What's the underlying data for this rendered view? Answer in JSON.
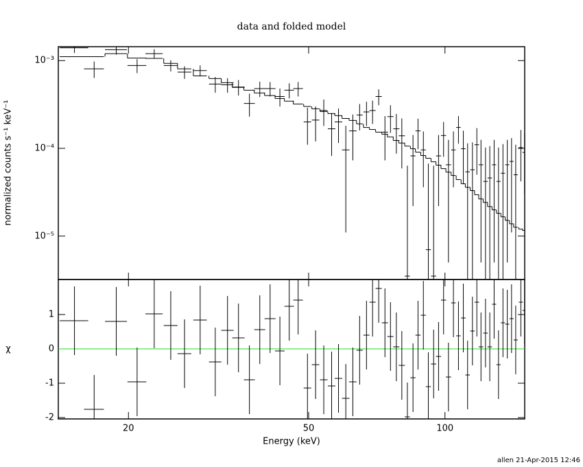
{
  "footer": "allen 21-Apr-2015 12:46",
  "chart_data": [
    {
      "type": "spectrum",
      "title": "data and folded model",
      "y_label": "normalized counts s⁻¹ keV⁻¹",
      "log_x": true,
      "log_y": true,
      "color": "#000000",
      "xlim": [
        14,
        150
      ],
      "ylim": [
        3.2e-06,
        0.00144
      ],
      "yticks": [
        {
          "value": 0.001,
          "label": "10⁻³"
        },
        {
          "value": 0.0001,
          "label": "10⁻⁴"
        },
        {
          "value": 1e-05,
          "label": "10⁻⁵"
        }
      ],
      "x": [
        15.2,
        16.8,
        18.8,
        20.9,
        22.8,
        24.8,
        26.6,
        28.8,
        31.1,
        33.1,
        35.0,
        37.0,
        39.0,
        41.1,
        43.2,
        45.3,
        47.4,
        49.7,
        51.8,
        54.0,
        56.2,
        58.2,
        60.4,
        62.6,
        64.8,
        67.1,
        69.2,
        71.4,
        73.7,
        75.8,
        78.1,
        80.3,
        82.6,
        85.0,
        87.2,
        89.6,
        91.9,
        94.4,
        96.8,
        99.3,
        101.8,
        104.4,
        107.1,
        109.8,
        112.2,
        115.0,
        117.6,
        120.1,
        122.9,
        125.6,
        128.4,
        131.3,
        134.3,
        137.3,
        140.3,
        143.3,
        147.1,
        149.9
      ],
      "xerr": [
        1.1,
        0.85,
        1.05,
        1.0,
        1.0,
        0.87,
        0.93,
        0.98,
        0.98,
        1.04,
        1.1,
        1.03,
        1.09,
        1.15,
        1.05,
        1.1,
        1.16,
        0.95,
        0.99,
        1.04,
        1.08,
        1.12,
        1.16,
        1.2,
        1.02,
        1.05,
        1.09,
        1.12,
        1.16,
        1.19,
        1.23,
        1.26,
        1.08,
        1.11,
        1.14,
        1.17,
        1.2,
        1.24,
        1.27,
        1.3,
        1.33,
        1.2,
        1.23,
        1.26,
        1.29,
        1.32,
        1.35,
        1.38,
        1.41,
        1.44,
        1.35,
        1.38,
        1.41,
        1.44,
        1.47,
        1.5,
        1.54,
        1.57
      ],
      "values": [
        0.0014,
        0.000805,
        0.00133,
        0.00088,
        0.0012,
        0.00088,
        0.00074,
        0.00077,
        0.00054,
        0.00053,
        0.0005,
        0.000325,
        0.00048,
        0.00048,
        0.00039,
        0.00046,
        0.00048,
        0.0002,
        0.00021,
        0.00027,
        0.000167,
        0.0002,
        9.6e-05,
        0.000158,
        0.00024,
        0.00026,
        0.00027,
        0.00039,
        0.000153,
        0.00023,
        0.000167,
        0.000139,
        3.5e-06,
        8.2e-05,
        0.000158,
        9.6e-05,
        7e-06,
        3.5e-06,
        8.2e-05,
        0.00014,
        6.5e-05,
        9.6e-05,
        0.000173,
        9.9e-05,
        5.4e-05,
        5.7e-05,
        0.00011,
        6.5e-05,
        4.2e-05,
        4.6e-05,
        6.5e-05,
        4.2e-05,
        5.2e-05,
        6.5e-05,
        7.1e-05,
        5e-05,
        0.000102,
        9e-05
      ],
      "errors": [
        0.00018,
        0.00017,
        0.00016,
        0.00016,
        0.00015,
        0.00013,
        0.00012,
        0.00011,
        0.00011,
        0.0001,
        0.0001,
        9.5e-05,
        9.5e-05,
        9e-05,
        9e-05,
        9e-05,
        9e-05,
        9e-05,
        9e-05,
        9e-05,
        8.5e-05,
        8.5e-05,
        8.5e-05,
        8.5e-05,
        8e-05,
        8e-05,
        8e-05,
        8e-05,
        8e-05,
        8e-05,
        8e-05,
        8e-05,
        6e-05,
        6e-05,
        6e-05,
        6e-05,
        6e-05,
        6e-05,
        6e-05,
        6e-05,
        6e-05,
        6e-05,
        6e-05,
        6e-05,
        6e-05,
        6e-05,
        6e-05,
        6e-05,
        6e-05,
        6e-05,
        6e-05,
        6e-05,
        6e-05,
        6e-05,
        6e-05,
        6e-05,
        6e-05,
        6e-05
      ],
      "model": [
        0.00111,
        0.00111,
        0.0012,
        0.00107,
        0.00106,
        0.00093,
        0.000805,
        0.00067,
        0.000625,
        0.00056,
        0.000495,
        0.00046,
        0.000428,
        0.0004,
        0.00037,
        0.000345,
        0.00032,
        0.0003,
        0.000282,
        0.000263,
        0.000249,
        0.000236,
        0.000219,
        0.000208,
        0.00019,
        0.000173,
        0.000164,
        0.000153,
        0.000145,
        0.000135,
        0.000123,
        0.000115,
        0.000106,
        9.9e-05,
        9.05e-05,
        8.27e-05,
        7.7e-05,
        7.03e-05,
        6.43e-05,
        5.87e-05,
        5.36e-05,
        4.9e-05,
        4.4e-05,
        3.95e-05,
        3.6e-05,
        3.3e-05,
        2.96e-05,
        2.65e-05,
        2.42e-05,
        2.17e-05,
        1.99e-05,
        1.82e-05,
        1.66e-05,
        1.51e-05,
        1.38e-05,
        1.26e-05,
        1.2e-05,
        1.16e-05
      ]
    },
    {
      "type": "residual",
      "x_label": "Energy (keV)",
      "y_label": "χ",
      "log_x": true,
      "color": "#000000",
      "xlim": [
        14,
        150
      ],
      "xticks": [
        20,
        50,
        100
      ],
      "ylim": [
        -2.04,
        2.02
      ],
      "yticks": [
        -2,
        -1,
        0,
        1
      ],
      "reference_line": 0,
      "reference_color": "#22dd22",
      "x": [
        15.2,
        16.8,
        18.8,
        20.9,
        22.8,
        24.8,
        26.6,
        28.8,
        31.1,
        33.1,
        35.0,
        37.0,
        39.0,
        41.1,
        43.2,
        45.3,
        47.4,
        49.7,
        51.8,
        54.0,
        56.2,
        58.2,
        60.4,
        62.6,
        64.8,
        67.1,
        69.2,
        71.4,
        73.7,
        75.8,
        78.1,
        80.3,
        82.6,
        85.0,
        87.2,
        89.6,
        91.9,
        94.4,
        96.8,
        99.3,
        101.8,
        104.4,
        107.1,
        109.8,
        112.2,
        115.0,
        117.6,
        120.1,
        122.9,
        125.6,
        128.4,
        131.3,
        134.3,
        137.3,
        140.3,
        143.3,
        147.1,
        149.9
      ],
      "xerr": [
        1.1,
        0.85,
        1.05,
        1.0,
        1.0,
        0.87,
        0.93,
        0.98,
        0.98,
        1.04,
        1.1,
        1.03,
        1.09,
        1.15,
        1.05,
        1.1,
        1.16,
        0.95,
        0.99,
        1.04,
        1.08,
        1.12,
        1.16,
        1.2,
        1.02,
        1.05,
        1.09,
        1.12,
        1.16,
        1.19,
        1.23,
        1.26,
        1.08,
        1.11,
        1.14,
        1.17,
        1.2,
        1.24,
        1.27,
        1.3,
        1.33,
        1.2,
        1.23,
        1.26,
        1.29,
        1.32,
        1.35,
        1.38,
        1.41,
        1.44,
        1.35,
        1.38,
        1.41,
        1.44,
        1.47,
        1.5,
        1.54,
        1.57
      ],
      "values": [
        0.82,
        -1.76,
        0.8,
        -0.96,
        1.02,
        0.68,
        -0.14,
        0.84,
        -0.38,
        0.54,
        0.32,
        -0.9,
        0.56,
        0.88,
        -0.06,
        1.24,
        1.42,
        -1.14,
        -0.46,
        -0.9,
        -1.08,
        -0.86,
        -1.44,
        -0.96,
        -0.04,
        0.4,
        1.36,
        1.76,
        0.76,
        0.36,
        0.06,
        -0.48,
        -1.98,
        -0.84,
        0.4,
        0.98,
        -1.1,
        -0.44,
        -0.22,
        1.42,
        -0.82,
        1.34,
        0.38,
        0.9,
        -0.76,
        0.52,
        1.36,
        0.06,
        0.46,
        0.06,
        1.3,
        -0.46,
        0.76,
        0.72,
        0.88,
        0.26,
        1.36,
        1.12
      ],
      "errors": [
        1,
        1,
        1,
        1,
        1,
        1,
        1,
        1,
        1,
        1,
        1,
        1,
        1,
        1,
        1,
        1,
        1,
        1,
        1,
        1,
        1,
        1,
        1,
        1,
        1,
        1,
        1,
        1,
        1,
        1,
        1,
        1,
        1,
        1,
        1,
        1,
        1,
        1,
        1,
        1,
        1,
        1,
        1,
        1,
        1,
        1,
        1,
        1,
        1,
        1,
        1,
        1,
        1,
        1,
        1,
        1,
        1,
        1
      ]
    }
  ]
}
